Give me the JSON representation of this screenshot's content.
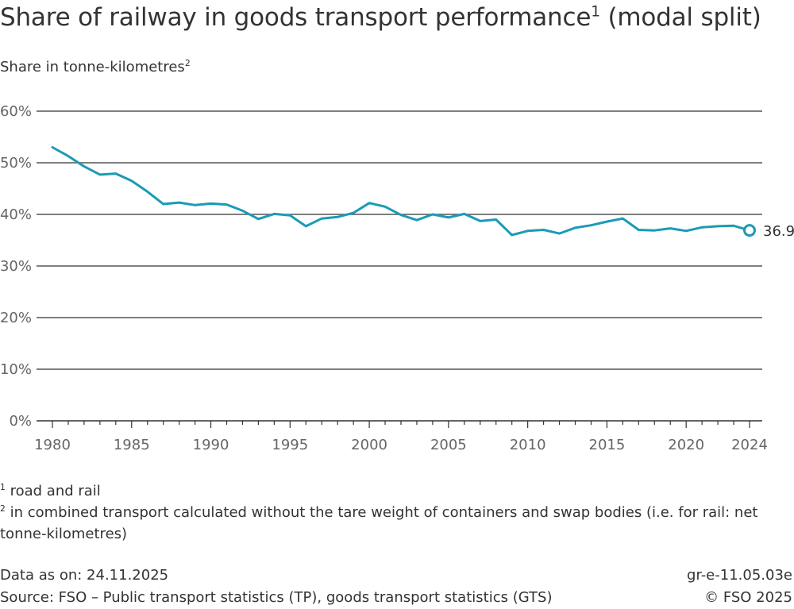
{
  "header": {
    "title": "Share of railway in goods transport performance",
    "title_sup": "1",
    "title_suffix": " (modal split)",
    "subtitle": "Share in tonne-kilometres",
    "subtitle_sup": "2"
  },
  "notes": {
    "note1_marker": "1",
    "note1_text": " road and rail",
    "note2_marker": "2",
    "note2_line1": " in combined transport calculated without the tare weight of containers and swap bodies (i.e. for rail: net",
    "note2_line2": "tonne-kilometres)"
  },
  "footer": {
    "data_as_on": "Data as on: 24.11.2025",
    "source": "Source: FSO – Public transport statistics (TP), goods transport statistics (GTS)",
    "code": "gr-e-11.05.03e",
    "copyright": "© FSO 2025"
  },
  "colors": {
    "line": "#1a9bb5",
    "grid": "#555555",
    "axis": "#333333"
  },
  "chart_data": {
    "type": "line",
    "ylim": [
      0,
      60
    ],
    "y_ticks": [
      0,
      10,
      20,
      30,
      40,
      50,
      60
    ],
    "y_tick_labels": [
      "0%",
      "10%",
      "20%",
      "30%",
      "40%",
      "50%",
      "60%"
    ],
    "x_range": [
      1980,
      2024
    ],
    "x_ticks": [
      1980,
      1985,
      1990,
      1995,
      2000,
      2005,
      2010,
      2015,
      2020,
      2024
    ],
    "x_tick_labels": [
      "1980",
      "1985",
      "1990",
      "1995",
      "2000",
      "2005",
      "2010",
      "2015",
      "2020",
      "2024"
    ],
    "grid": true,
    "series": [
      {
        "x": [
          1980,
          1981,
          1982,
          1983,
          1984,
          1985,
          1986,
          1987,
          1988,
          1989,
          1990,
          1991,
          1992,
          1993,
          1994,
          1995,
          1996,
          1997,
          1998,
          1999,
          2000,
          2001,
          2002,
          2003,
          2004,
          2005,
          2006,
          2007,
          2008,
          2009,
          2010,
          2011,
          2012,
          2013,
          2014,
          2015,
          2016,
          2017,
          2018,
          2019,
          2020,
          2021,
          2022,
          2023,
          2024
        ],
        "values": [
          53.0,
          51.3,
          49.3,
          47.7,
          47.9,
          46.5,
          44.4,
          42.0,
          42.3,
          41.8,
          42.1,
          41.9,
          40.7,
          39.1,
          40.1,
          39.8,
          37.7,
          39.2,
          39.5,
          40.3,
          42.2,
          41.5,
          39.9,
          38.9,
          40.0,
          39.4,
          40.1,
          38.7,
          39.0,
          36.0,
          36.8,
          37.0,
          36.3,
          37.4,
          37.9,
          38.6,
          39.2,
          37.0,
          36.9,
          37.3,
          36.8,
          37.5,
          37.7,
          37.8,
          36.9
        ],
        "end_label": "36.9"
      }
    ]
  }
}
